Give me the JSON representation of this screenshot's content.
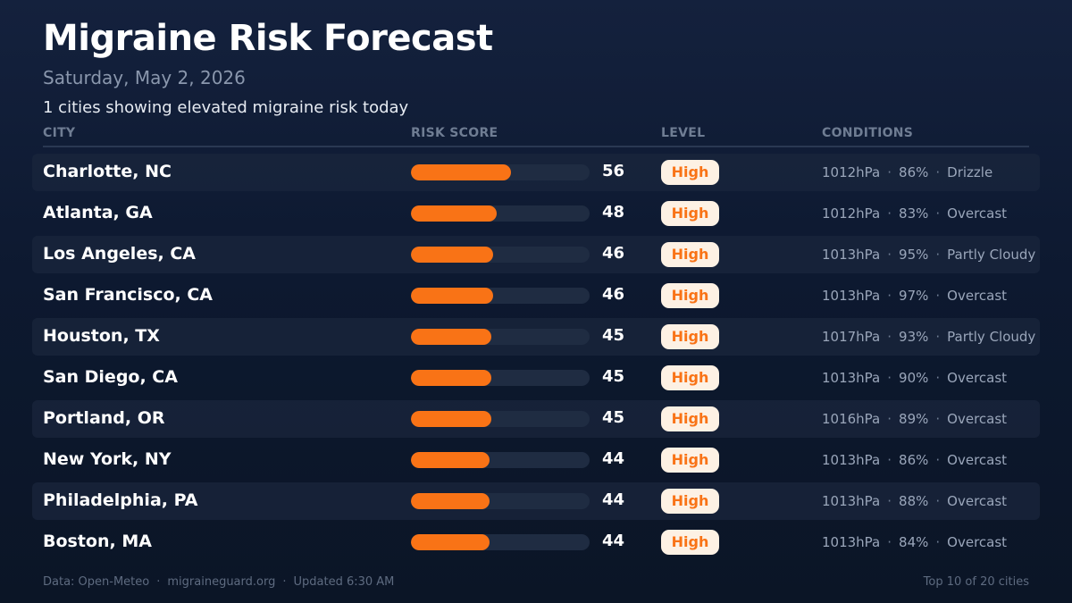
{
  "header": {
    "title": "Migraine Risk Forecast",
    "date": "Saturday, May 2, 2026",
    "summary": "1 cities showing elevated migraine risk today"
  },
  "columns": {
    "city": "CITY",
    "risk_score": "RISK SCORE",
    "level": "LEVEL",
    "conditions": "CONDITIONS"
  },
  "score_max": 100,
  "colors": {
    "accent": "#f97316",
    "badge_bg": "#fdf1e4"
  },
  "rows": [
    {
      "city": "Charlotte, NC",
      "score": "56",
      "level": "High",
      "pressure": "1012hPa",
      "humidity": "86%",
      "weather": "Drizzle"
    },
    {
      "city": "Atlanta, GA",
      "score": "48",
      "level": "High",
      "pressure": "1012hPa",
      "humidity": "83%",
      "weather": "Overcast"
    },
    {
      "city": "Los Angeles, CA",
      "score": "46",
      "level": "High",
      "pressure": "1013hPa",
      "humidity": "95%",
      "weather": "Partly Cloudy"
    },
    {
      "city": "San Francisco, CA",
      "score": "46",
      "level": "High",
      "pressure": "1013hPa",
      "humidity": "97%",
      "weather": "Overcast"
    },
    {
      "city": "Houston, TX",
      "score": "45",
      "level": "High",
      "pressure": "1017hPa",
      "humidity": "93%",
      "weather": "Partly Cloudy"
    },
    {
      "city": "San Diego, CA",
      "score": "45",
      "level": "High",
      "pressure": "1013hPa",
      "humidity": "90%",
      "weather": "Overcast"
    },
    {
      "city": "Portland, OR",
      "score": "45",
      "level": "High",
      "pressure": "1016hPa",
      "humidity": "89%",
      "weather": "Overcast"
    },
    {
      "city": "New York, NY",
      "score": "44",
      "level": "High",
      "pressure": "1013hPa",
      "humidity": "86%",
      "weather": "Overcast"
    },
    {
      "city": "Philadelphia, PA",
      "score": "44",
      "level": "High",
      "pressure": "1013hPa",
      "humidity": "88%",
      "weather": "Overcast"
    },
    {
      "city": "Boston, MA",
      "score": "44",
      "level": "High",
      "pressure": "1013hPa",
      "humidity": "84%",
      "weather": "Overcast"
    }
  ],
  "footer": {
    "source": "Data: Open-Meteo",
    "site": "migraineguard.org",
    "updated": "Updated 6:30 AM",
    "count": "Top 10 of 20 cities"
  }
}
